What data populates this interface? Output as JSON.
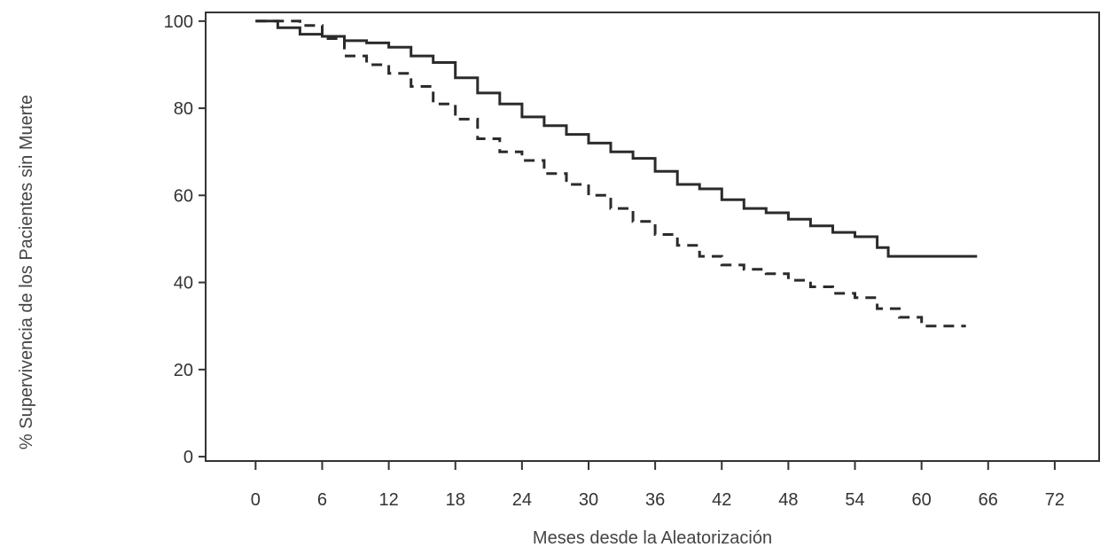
{
  "chart_data": {
    "type": "line",
    "title": "",
    "xlabel": "Meses desde la Aleatorización",
    "ylabel": "% Supervivencia de los Pacientes sin Muerte",
    "xlim": [
      -4.5,
      76
    ],
    "ylim": [
      -1,
      102
    ],
    "xticks": [
      0,
      6,
      12,
      18,
      24,
      30,
      36,
      42,
      48,
      54,
      60,
      66,
      72
    ],
    "yticks": [
      0,
      20,
      40,
      60,
      80,
      100
    ],
    "grid": false,
    "legend": "none",
    "series": [
      {
        "style": "solid",
        "color": "#2b2b2b",
        "x": [
          0,
          2,
          4,
          6,
          8,
          10,
          12,
          14,
          16,
          18,
          20,
          22,
          24,
          26,
          28,
          30,
          32,
          34,
          36,
          38,
          40,
          42,
          44,
          46,
          48,
          50,
          52,
          54,
          56,
          57,
          60,
          65
        ],
        "y": [
          100,
          98.5,
          97,
          96.5,
          95.5,
          95,
          94,
          92,
          90.5,
          87,
          83.5,
          81,
          78,
          76,
          74,
          72,
          70,
          68.5,
          65.5,
          62.5,
          61.5,
          59,
          57,
          56,
          54.5,
          53,
          51.5,
          50.5,
          48,
          46,
          46,
          46
        ]
      },
      {
        "style": "dashed",
        "color": "#2b2b2b",
        "x": [
          0,
          2,
          4,
          6,
          8,
          10,
          12,
          14,
          16,
          18,
          20,
          22,
          24,
          26,
          28,
          30,
          32,
          34,
          36,
          38,
          40,
          42,
          44,
          46,
          48,
          50,
          52,
          54,
          56,
          58,
          60,
          62,
          64
        ],
        "y": [
          100,
          100,
          99,
          96,
          92,
          90,
          88,
          85,
          81,
          77.5,
          73,
          70,
          68,
          65,
          62.5,
          60,
          57,
          54,
          51,
          48.5,
          46,
          44,
          43,
          42,
          40.5,
          39,
          37.5,
          36.5,
          34,
          32,
          30,
          30,
          30
        ]
      }
    ]
  }
}
